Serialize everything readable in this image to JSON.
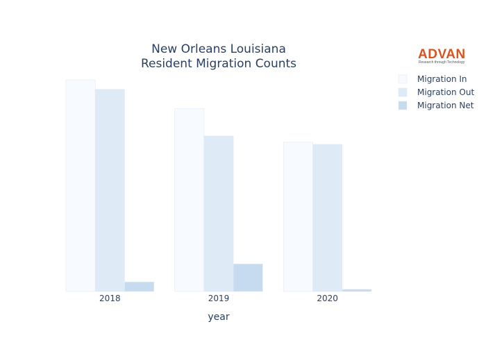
{
  "chart_data": {
    "type": "bar",
    "title": "New Orleans Louisiana",
    "subtitle": "Resident Migration Counts",
    "xlabel": "year",
    "ylabel": "",
    "categories": [
      "2018",
      "2019",
      "2020"
    ],
    "ylim": [
      0,
      100
    ],
    "grid": false,
    "legend_position": "top-right",
    "series": [
      {
        "name": "Migration In",
        "values": [
          100,
          86.5,
          70.5
        ],
        "color": "#f7fbff"
      },
      {
        "name": "Migration Out",
        "values": [
          95.5,
          73.5,
          69.5
        ],
        "color": "#deebf7"
      },
      {
        "name": "Migration Net",
        "values": [
          4.5,
          13,
          1
        ],
        "color": "#c6dbef"
      }
    ]
  },
  "logo": {
    "name": "ADVAN",
    "tagline": "Research through Technology"
  }
}
